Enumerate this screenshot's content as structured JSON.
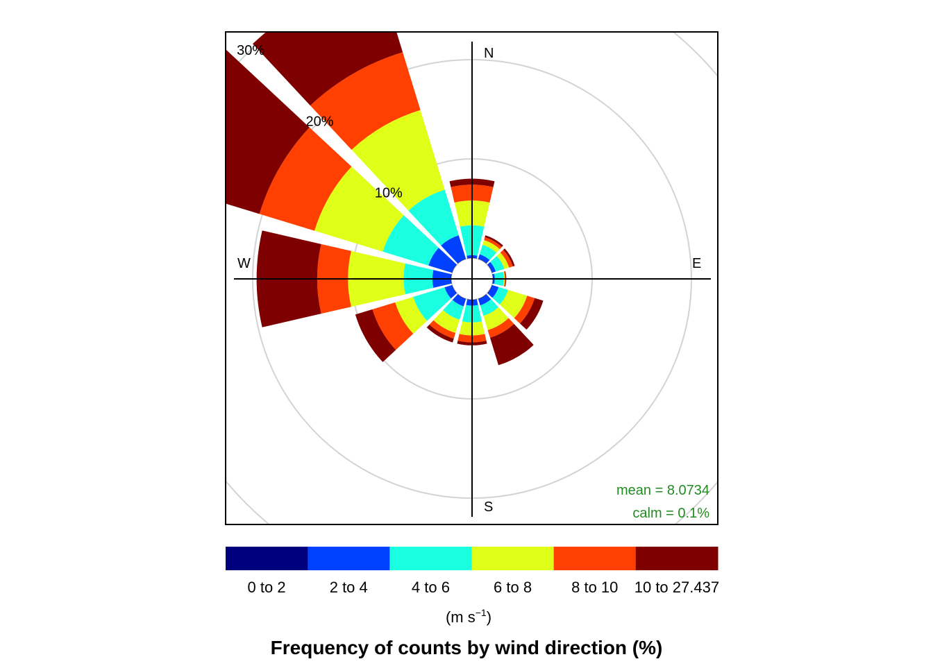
{
  "chart_data": {
    "type": "polar_bar",
    "title": "Frequency of counts by wind direction (%)",
    "compass": {
      "north": "N",
      "east": "E",
      "south": "S",
      "west": "W"
    },
    "radial_axis": {
      "max_percent": 35,
      "ticks": [
        10,
        20,
        30
      ],
      "tick_labels": [
        "10%",
        "20%",
        "30%"
      ]
    },
    "stats": {
      "mean_label": "mean = 8.0734",
      "calm_label": "calm = 0.1%"
    },
    "legend": {
      "unit": "(m s",
      "unit_exp": "−1",
      "unit_close": ")",
      "bins": [
        {
          "label": "0 to 2",
          "color": "#00007F"
        },
        {
          "label": "2 to 4",
          "color": "#0040FF"
        },
        {
          "label": "4 to 6",
          "color": "#19FFDF"
        },
        {
          "label": "6 to 8",
          "color": "#DFFF19"
        },
        {
          "label": "8 to 10",
          "color": "#FF4000"
        },
        {
          "label": "10 to 27.437",
          "color": "#7F0000"
        }
      ]
    },
    "series_note": "Each direction lists cumulative % at top of each speed bin (0-2, 2-4, 4-6, 6-8, 8-10, 10-27.437)",
    "directions": [
      {
        "dir": 0,
        "cum": [
          0.05,
          0.3,
          3.3,
          5.8,
          7.4,
          8.0
        ]
      },
      {
        "dir": 30,
        "cum": [
          0.05,
          0.5,
          1.5,
          2.0,
          2.3,
          2.5
        ]
      },
      {
        "dir": 60,
        "cum": [
          0.05,
          0.4,
          1.3,
          1.8,
          2.2,
          2.4
        ]
      },
      {
        "dir": 90,
        "cum": [
          0.05,
          0.2,
          1.1,
          1.2,
          1.3,
          1.35
        ]
      },
      {
        "dir": 120,
        "cum": [
          0.05,
          0.7,
          1.7,
          3.7,
          4.5,
          5.4
        ]
      },
      {
        "dir": 150,
        "cum": [
          0.05,
          0.7,
          1.8,
          3.3,
          4.1,
          7.0
        ]
      },
      {
        "dir": 180,
        "cum": [
          0.05,
          0.6,
          2.3,
          3.6,
          4.3,
          4.6
        ]
      },
      {
        "dir": 210,
        "cum": [
          0.05,
          0.8,
          2.2,
          3.6,
          4.2,
          4.6
        ]
      },
      {
        "dir": 240,
        "cum": [
          0.05,
          0.8,
          4.1,
          6.0,
          8.4,
          10.2
        ]
      },
      {
        "dir": 270,
        "cum": [
          0.05,
          1.9,
          4.8,
          10.4,
          13.5,
          19.6
        ]
      },
      {
        "dir": 300,
        "cum": [
          0.05,
          2.5,
          7.3,
          14.5,
          20.3,
          33.0
        ]
      },
      {
        "dir": 330,
        "cum": [
          0.05,
          2.5,
          7.3,
          15.7,
          21.8,
          30.3
        ]
      }
    ]
  }
}
